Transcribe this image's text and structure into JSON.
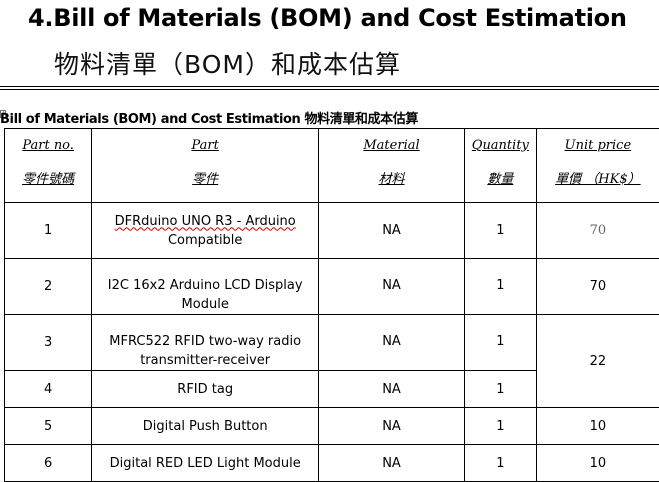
{
  "heading": {
    "title": "4.Bill of Materials (BOM) and Cost Estimation",
    "subtitle": "物料清單（BOM）和成本估算"
  },
  "caption": "Bill of Materials (BOM) and Cost Estimation 物料清單和成本估算",
  "table": {
    "headers": [
      {
        "en": "Part no.",
        "zh": "零件號碼"
      },
      {
        "en": "Part",
        "zh": "零件"
      },
      {
        "en": "Material",
        "zh": "材料"
      },
      {
        "en": "Quantity",
        "zh": "數量"
      },
      {
        "en": "Unit price",
        "zh": "單價 （HK$）"
      }
    ],
    "rows": [
      {
        "no": "1",
        "part_a": "DFRduino UNO R3 - Arduino",
        "part_b": "Compatible",
        "material": "NA",
        "qty": "1",
        "price": "70"
      },
      {
        "no": "2",
        "part_a": "I2C 16x2 Arduino LCD Display",
        "part_b": "Module",
        "material": "NA",
        "qty": "1",
        "price": "70"
      },
      {
        "no": "3",
        "part_a": "MFRC522 RFID two-way radio",
        "part_b": "transmitter-receiver",
        "material": "NA",
        "qty": "1",
        "price": "22"
      },
      {
        "no": "4",
        "part_a": "RFID tag",
        "material": "NA",
        "qty": "1"
      },
      {
        "no": "5",
        "part_a": "Digital Push Button",
        "material": "NA",
        "qty": "1",
        "price": "10"
      },
      {
        "no": "6",
        "part_a": "Digital RED LED Light Module",
        "material": "NA",
        "qty": "1",
        "price": "10"
      }
    ]
  }
}
